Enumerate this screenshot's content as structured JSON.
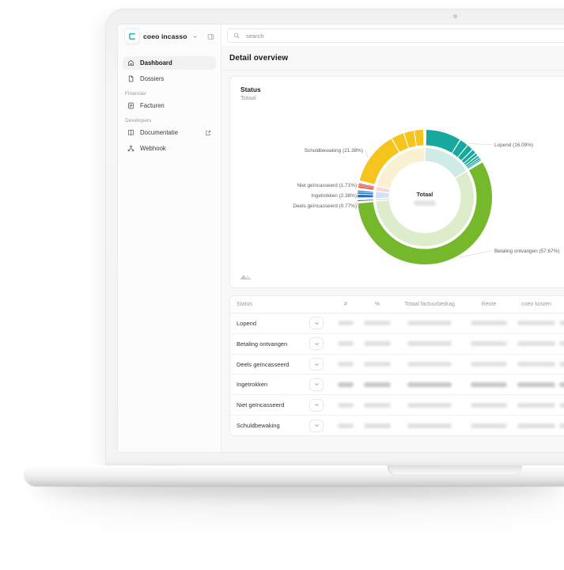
{
  "app": {
    "name": "coeo incasso"
  },
  "sidebar": {
    "logo_label": "coeo incasso",
    "logo_color": "#2ab3c4",
    "nav": [
      {
        "type": "item",
        "label": "Dashboard",
        "icon": "home",
        "active": true
      },
      {
        "type": "item",
        "label": "Dossiers",
        "icon": "file",
        "active": false
      },
      {
        "type": "section",
        "label": "Financier"
      },
      {
        "type": "item",
        "label": "Facturen",
        "icon": "invoice",
        "active": false
      },
      {
        "type": "section",
        "label": "Developers"
      },
      {
        "type": "item",
        "label": "Documentatie",
        "icon": "book",
        "active": false,
        "external": true
      },
      {
        "type": "item",
        "label": "Webhook",
        "icon": "webhook",
        "active": false
      }
    ]
  },
  "search": {
    "placeholder": "search"
  },
  "page": {
    "title": "Detail overview"
  },
  "chart_data": {
    "type": "donut",
    "title": "Status",
    "subtitle": "Totaal",
    "center_label": "Totaal",
    "center_value_redacted": true,
    "legend_position": "callouts",
    "unit": "%",
    "segments": [
      {
        "label": "Lopend",
        "value": 16.09,
        "color": "#17a89e",
        "inner_color": "#d0eae6",
        "sub_weights": [
          55,
          14,
          10,
          7,
          5,
          4,
          3,
          2
        ]
      },
      {
        "label": "Betaling ontvangen",
        "value": 57.67,
        "color": "#76b82c",
        "inner_color": "#ddedcb",
        "sub_weights": [
          100
        ]
      },
      {
        "label": "Deels geïncasseerd",
        "value": 0.77,
        "color": "#5b66c0",
        "inner_color": "#dcdff2",
        "sub_weights": [
          100
        ]
      },
      {
        "label": "Ingetrokken",
        "value": 2.38,
        "color": "#2270b8",
        "inner_color": "#d2e2f2",
        "sub_weights": [
          50,
          28,
          22
        ]
      },
      {
        "label": "Niet geïncasseerd",
        "value": 1.71,
        "color": "#e03a31",
        "inner_color": "#f7d8d6",
        "sub_weights": [
          40,
          32,
          28
        ]
      },
      {
        "label": "Schuldbewaking",
        "value": 21.38,
        "color": "#f5c41d",
        "inner_color": "#faf1d2",
        "sub_weights": [
          62,
          15,
          12,
          11
        ]
      }
    ]
  },
  "table": {
    "columns": [
      "Status",
      "#",
      "%",
      "Totaal factuurbedrag",
      "Rente",
      "coeo kosten"
    ],
    "values_redacted": true,
    "rows": [
      {
        "status": "Lopend"
      },
      {
        "status": "Betaling ontvangen"
      },
      {
        "status": "Deels geïncasseerd"
      },
      {
        "status": "Ingetrokken"
      },
      {
        "status": "Niet geïncasseerd"
      },
      {
        "status": "Schuldbewaking"
      }
    ]
  }
}
